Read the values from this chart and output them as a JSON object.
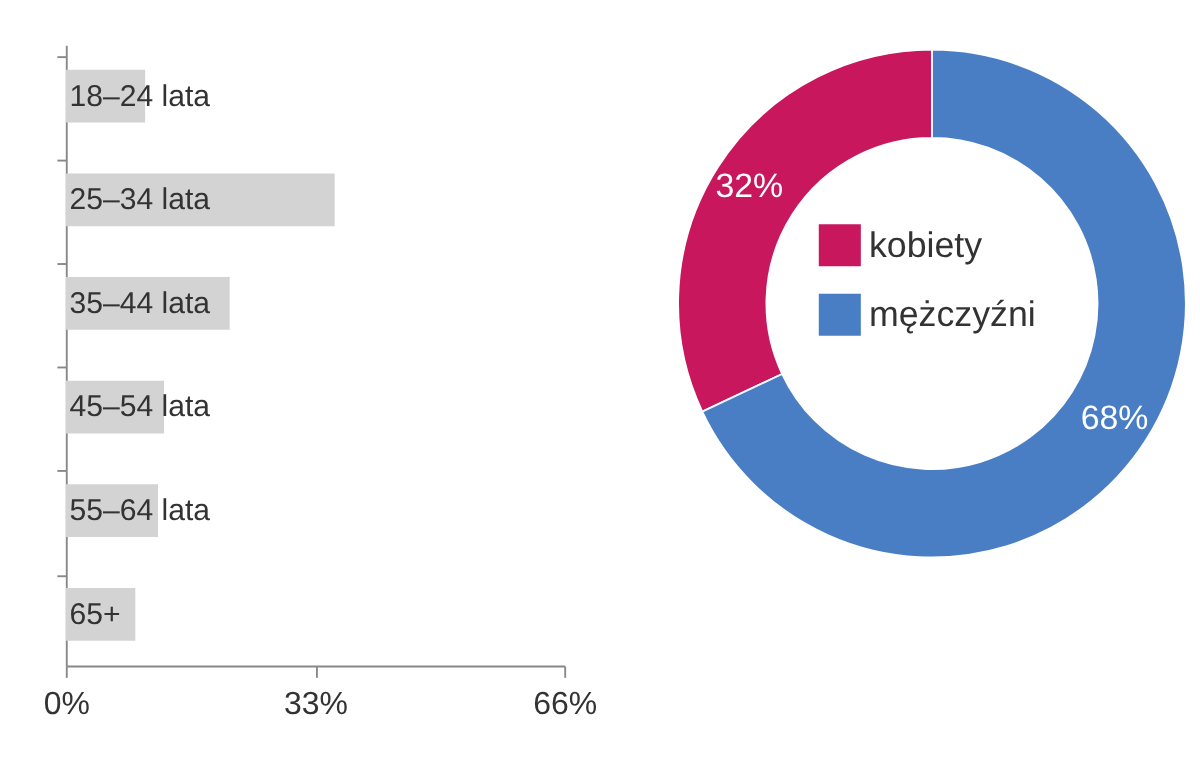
{
  "chart_data": [
    {
      "type": "bar",
      "orientation": "horizontal",
      "categories": [
        "18–24 lata",
        "25–34 lata",
        "35–44 lata",
        "45–54 lata",
        "55–64 lata",
        "65+"
      ],
      "values": [
        10.5,
        35.6,
        21.7,
        13,
        12.2,
        9.2
      ],
      "color": "#d3d3d3",
      "xlim": [
        0,
        66
      ],
      "xticks": [
        {
          "value": 0,
          "label": "0%"
        },
        {
          "value": 33,
          "label": "33%"
        },
        {
          "value": 66,
          "label": "66%"
        }
      ],
      "grid": false
    },
    {
      "type": "donut",
      "categories": [
        "kobiety",
        "mężczyźni"
      ],
      "values": [
        32,
        68
      ],
      "colors": [
        "#c8175d",
        "#4a7ec4"
      ],
      "value_labels": [
        "32%",
        "68%"
      ],
      "legend": "center"
    }
  ]
}
